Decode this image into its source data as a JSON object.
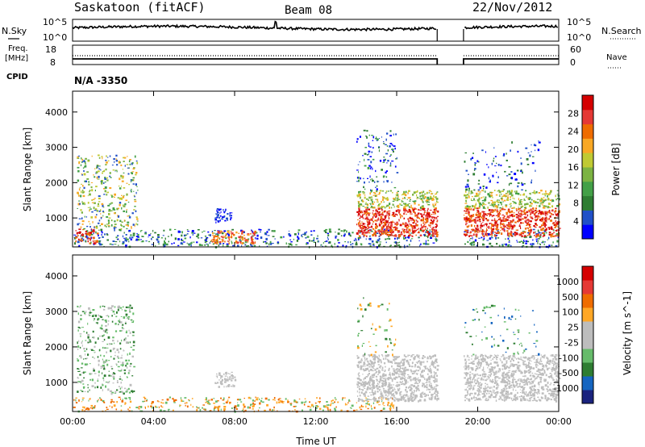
{
  "header": {
    "station": "Saskatoon (fitACF)",
    "beam": "Beam 08",
    "date": "22/Nov/2012"
  },
  "left_labels": {
    "nsky": "N.Sky",
    "freq": "Freq.",
    "freq_unit": "[MHz]",
    "cpid": "CPID"
  },
  "right_labels": {
    "nsearch": "N.Search",
    "nave": "Nave"
  },
  "cpid_value": "N/A -3350",
  "colors": {
    "power_scale": [
      "#0000ff",
      "#2050c8",
      "#2e7d32",
      "#43a047",
      "#7cb342",
      "#c0ca33",
      "#f9a825",
      "#ef6c00",
      "#e53935",
      "#d50000"
    ],
    "velocity_scale": [
      "#1a237e",
      "#1565c0",
      "#2e7d32",
      "#66bb6a",
      "#bdbdbd",
      "#bdbdbd",
      "#ffa726",
      "#ef6c00",
      "#e53935",
      "#d50000"
    ]
  },
  "chart_data": [
    {
      "type": "line",
      "name": "noise",
      "y_ticks_left": [
        "10^5",
        "10^0"
      ],
      "y_ticks_right": [
        "10^5",
        "10^0"
      ],
      "gap_hours": [
        18.0,
        19.3
      ]
    },
    {
      "type": "line",
      "name": "frequency",
      "y_ticks_left": [
        "18",
        "8"
      ],
      "y_ticks_right": [
        "60",
        "0"
      ],
      "gap_hours": [
        18.0,
        19.3
      ]
    },
    {
      "type": "heatmap",
      "name": "power",
      "ylabel": "Slant Range [km]",
      "y_ticks": [
        "1000",
        "2000",
        "3000",
        "4000"
      ],
      "ylim": [
        180,
        4590
      ],
      "xlim": [
        0,
        24
      ],
      "colorbar_label": "Power [dB]",
      "colorbar_ticks": [
        "4",
        "8",
        "12",
        "16",
        "20",
        "24",
        "28"
      ],
      "gap_hours": [
        18.0,
        19.3
      ]
    },
    {
      "type": "heatmap",
      "name": "velocity",
      "ylabel": "Slant Range [km]",
      "y_ticks": [
        "1000",
        "2000",
        "3000",
        "4000"
      ],
      "ylim": [
        180,
        4590
      ],
      "xlim": [
        0,
        24
      ],
      "colorbar_label": "Velocity [m s^-1]",
      "colorbar_ticks": [
        "1000",
        "500",
        "100",
        "25",
        "-25",
        "-100",
        "-500",
        "-1000"
      ],
      "gap_hours": [
        18.0,
        19.3
      ]
    }
  ],
  "x_axis": {
    "label": "Time UT",
    "ticks": [
      "00:00",
      "04:00",
      "08:00",
      "12:00",
      "16:00",
      "20:00",
      "00:00"
    ]
  }
}
